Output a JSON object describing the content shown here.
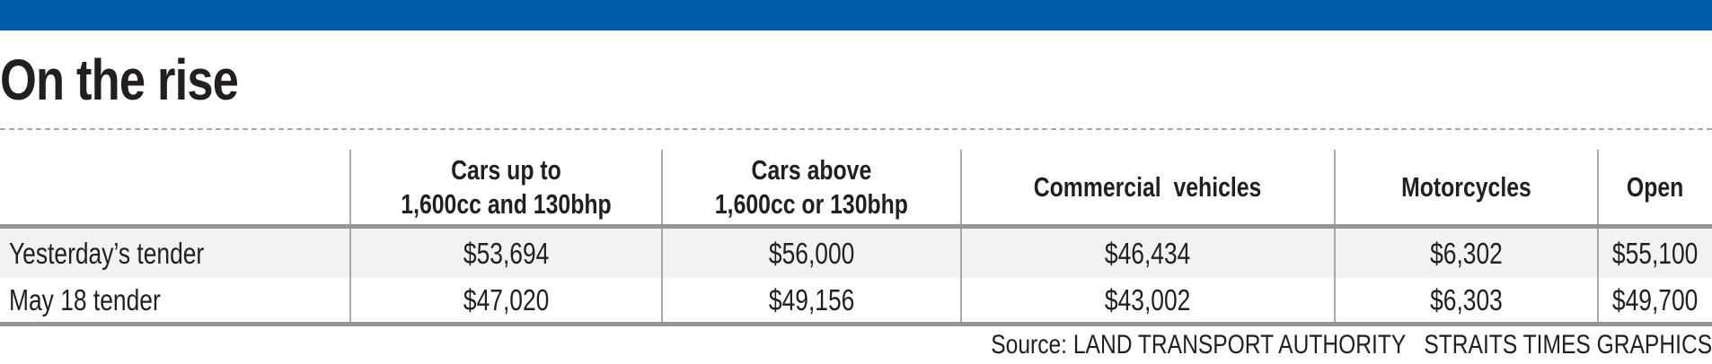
{
  "chart_data": {
    "type": "table",
    "title": "On the rise",
    "columns": [
      "",
      "Cars up to 1,600cc and 130bhp",
      "Cars above 1,600cc or 130bhp",
      "Commercial  vehicles",
      "Motorcycles",
      "Open"
    ],
    "header_lines": [
      [
        "",
        ""
      ],
      [
        "Cars up to",
        "1,600cc and 130bhp"
      ],
      [
        "Cars above",
        "1,600cc or 130bhp"
      ],
      [
        "Commercial  vehicles"
      ],
      [
        "Motorcycles"
      ],
      [
        "Open"
      ]
    ],
    "rows": [
      {
        "label": "Yesterday’s tender",
        "values": [
          "$53,694",
          "$56,000",
          "$46,434",
          "$6,302",
          "$55,100"
        ]
      },
      {
        "label": "May 18 tender",
        "values": [
          "$47,020",
          "$49,156",
          "$43,002",
          "$6,303",
          "$49,700"
        ]
      }
    ],
    "source": "Source: LAND TRANSPORT AUTHORITY   STRAITS TIMES GRAPHICS"
  },
  "colors": {
    "brand_bar": "#005baa",
    "row_shade": "#f1f3f2",
    "rule": "#939598"
  }
}
